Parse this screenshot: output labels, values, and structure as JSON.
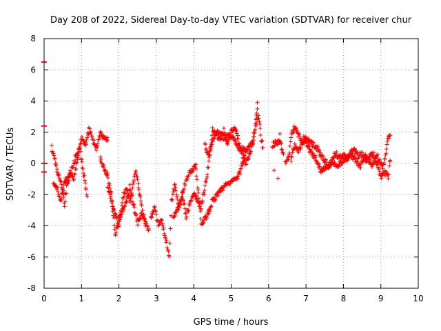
{
  "chart_data": {
    "type": "scatter",
    "title": "Day 208 of 2022, Sidereal Day-to-day VTEC variation (SDTVAR) for receiver chur",
    "xlabel": "GPS time / hours",
    "ylabel": "SDTVAR / TECUs",
    "xlim": [
      0,
      10
    ],
    "ylim": [
      -8,
      8
    ],
    "xticks": [
      "0",
      "1",
      "2",
      "3",
      "4",
      "5",
      "6",
      "7",
      "8",
      "9",
      "10"
    ],
    "yticks": [
      "-8",
      "-6",
      "-4",
      "-2",
      "0",
      "2",
      "4",
      "6",
      "8"
    ],
    "grid": true,
    "marker": "+",
    "color": "#ff0000",
    "edge_markers": [
      6.5,
      2.4,
      0.0,
      -0.55
    ],
    "series": [
      {
        "name": "SDTVAR",
        "anchors_note": "piecewise trend anchors [time_h, value] reconstructed from the plot",
        "tracks": [
          [
            [
              0.2,
              1.0
            ],
            [
              0.25,
              0.5
            ],
            [
              0.35,
              -0.5
            ],
            [
              0.45,
              -1.2
            ],
            [
              0.5,
              -2.0
            ],
            [
              0.55,
              -2.6
            ],
            [
              0.6,
              -1.5
            ],
            [
              0.7,
              -0.6
            ],
            [
              0.8,
              -1.0
            ],
            [
              0.9,
              0.5
            ],
            [
              1.0,
              1.6
            ],
            [
              1.1,
              1.2
            ],
            [
              1.2,
              2.2
            ],
            [
              1.3,
              1.5
            ],
            [
              1.4,
              1.0
            ],
            [
              1.5,
              1.9
            ],
            [
              1.6,
              1.7
            ],
            [
              1.7,
              1.5
            ]
          ],
          [
            [
              0.25,
              -1.2
            ],
            [
              0.35,
              -1.6
            ],
            [
              0.45,
              -2.4
            ],
            [
              0.55,
              -1.2
            ],
            [
              0.7,
              -0.6
            ],
            [
              0.85,
              0.4
            ],
            [
              0.95,
              1.0
            ],
            [
              1.05,
              -0.5
            ],
            [
              1.15,
              -2.1
            ]
          ],
          [
            [
              1.5,
              0.3
            ],
            [
              1.6,
              -0.2
            ],
            [
              1.7,
              -0.8
            ],
            [
              1.8,
              -2.0
            ],
            [
              1.9,
              -4.6
            ],
            [
              2.0,
              -3.5
            ],
            [
              2.1,
              -3.0
            ],
            [
              2.2,
              -2.5
            ],
            [
              2.3,
              -1.5
            ],
            [
              2.4,
              -2.8
            ],
            [
              2.5,
              -3.8
            ],
            [
              2.6,
              -3.2
            ],
            [
              2.7,
              -3.8
            ],
            [
              2.8,
              -4.2
            ]
          ],
          [
            [
              1.7,
              -1.5
            ],
            [
              1.85,
              -2.8
            ],
            [
              2.0,
              -4.0
            ],
            [
              2.1,
              -2.2
            ],
            [
              2.2,
              -1.5
            ],
            [
              2.3,
              -2.5
            ],
            [
              2.45,
              -0.5
            ],
            [
              2.6,
              -2.5
            ],
            [
              2.7,
              -4.0
            ]
          ],
          [
            [
              2.85,
              -3.5
            ],
            [
              2.95,
              -2.8
            ],
            [
              3.05,
              -3.9
            ],
            [
              3.15,
              -3.7
            ],
            [
              3.25,
              -4.8
            ],
            [
              3.35,
              -6.0
            ],
            [
              3.4,
              -2.5
            ],
            [
              3.5,
              -1.2
            ],
            [
              3.6,
              -3.0
            ],
            [
              3.7,
              -2.0
            ],
            [
              3.8,
              -3.4
            ],
            [
              3.9,
              -2.5
            ],
            [
              4.0,
              -2.0
            ],
            [
              4.1,
              -2.3
            ],
            [
              4.2,
              -2.8
            ],
            [
              4.3,
              -1.5
            ],
            [
              4.4,
              0.0
            ],
            [
              4.5,
              2.2
            ],
            [
              4.6,
              1.8
            ],
            [
              4.7,
              1.6
            ],
            [
              4.8,
              2.1
            ],
            [
              4.9,
              1.3
            ],
            [
              5.0,
              2.0
            ],
            [
              5.1,
              2.4
            ],
            [
              5.2,
              1.4
            ],
            [
              5.3,
              0.6
            ],
            [
              5.4,
              0.1
            ],
            [
              5.5,
              0.6
            ],
            [
              5.6,
              1.8
            ],
            [
              5.7,
              3.0
            ],
            [
              5.75,
              2.8
            ],
            [
              5.8,
              1.6
            ],
            [
              5.85,
              1.0
            ]
          ],
          [
            [
              3.45,
              -3.5
            ],
            [
              3.6,
              -2.8
            ],
            [
              3.75,
              -1.4
            ],
            [
              3.9,
              -0.5
            ],
            [
              4.05,
              -0.2
            ],
            [
              4.2,
              -3.8
            ],
            [
              4.35,
              -3.4
            ],
            [
              4.5,
              -2.4
            ],
            [
              4.65,
              -2.0
            ],
            [
              4.8,
              -1.5
            ],
            [
              5.0,
              -1.2
            ],
            [
              5.2,
              -0.8
            ],
            [
              5.35,
              0.3
            ]
          ],
          [
            [
              4.3,
              1.2
            ],
            [
              4.4,
              0.5
            ],
            [
              4.5,
              1.5
            ],
            [
              4.65,
              2.0
            ],
            [
              4.8,
              1.6
            ],
            [
              5.0,
              1.8
            ],
            [
              5.2,
              1.0
            ],
            [
              5.4,
              0.8
            ],
            [
              5.6,
              1.4
            ],
            [
              5.7,
              3.5
            ]
          ],
          [
            [
              6.1,
              1.2
            ],
            [
              6.2,
              1.3
            ],
            [
              6.3,
              1.5
            ],
            [
              6.4,
              0.6
            ]
          ],
          [
            [
              6.45,
              0.0
            ],
            [
              6.55,
              0.5
            ],
            [
              6.6,
              1.8
            ],
            [
              6.7,
              2.3
            ],
            [
              6.8,
              1.8
            ],
            [
              6.9,
              1.3
            ],
            [
              7.0,
              1.6
            ],
            [
              7.1,
              1.4
            ],
            [
              7.2,
              1.2
            ],
            [
              7.3,
              1.0
            ],
            [
              7.4,
              0.5
            ],
            [
              7.5,
              0.2
            ],
            [
              7.6,
              -0.3
            ],
            [
              7.7,
              0.3
            ],
            [
              7.8,
              0.6
            ],
            [
              7.9,
              0.4
            ],
            [
              8.0,
              0.5
            ],
            [
              8.1,
              0.3
            ],
            [
              8.2,
              0.7
            ],
            [
              8.3,
              0.8
            ],
            [
              8.4,
              0.5
            ],
            [
              8.5,
              0.6
            ],
            [
              8.6,
              0.2
            ],
            [
              8.7,
              0.4
            ],
            [
              8.8,
              0.6
            ],
            [
              8.9,
              0.0
            ],
            [
              9.0,
              -0.9
            ],
            [
              9.1,
              -0.6
            ],
            [
              9.2,
              -0.8
            ],
            [
              9.25,
              0.2
            ]
          ],
          [
            [
              6.6,
              0.3
            ],
            [
              6.7,
              1.2
            ],
            [
              6.8,
              0.8
            ],
            [
              6.95,
              1.7
            ],
            [
              7.1,
              0.8
            ],
            [
              7.25,
              0.4
            ],
            [
              7.4,
              -0.5
            ],
            [
              7.55,
              -0.2
            ],
            [
              7.7,
              0.1
            ],
            [
              7.85,
              -0.2
            ],
            [
              8.0,
              0.2
            ],
            [
              8.15,
              0.5
            ],
            [
              8.3,
              0.3
            ],
            [
              8.45,
              -0.2
            ],
            [
              8.6,
              0.6
            ],
            [
              8.75,
              -0.1
            ],
            [
              8.9,
              0.5
            ],
            [
              9.05,
              -0.3
            ],
            [
              9.15,
              0.9
            ],
            [
              9.2,
              1.7
            ],
            [
              9.25,
              1.8
            ]
          ]
        ],
        "isolated_points": [
          [
            5.7,
            3.9
          ],
          [
            6.15,
            -0.45
          ],
          [
            6.25,
            -0.95
          ],
          [
            6.3,
            1.9
          ]
        ]
      }
    ]
  }
}
